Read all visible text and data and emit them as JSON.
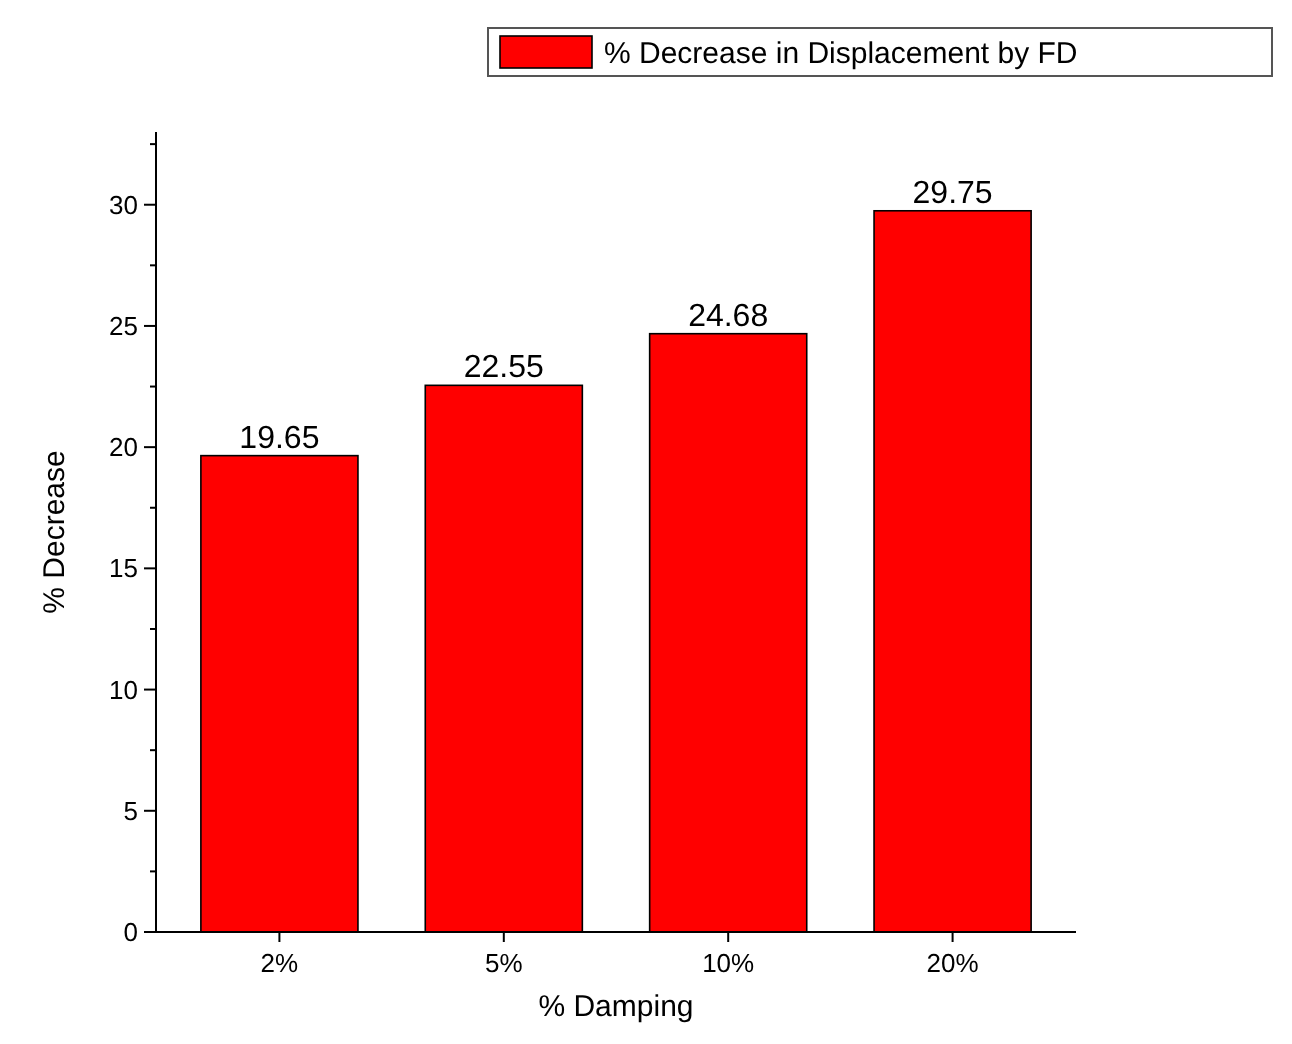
{
  "chart_data": {
    "type": "bar",
    "xlabel": "% Damping",
    "ylabel": "% Decrease",
    "categories": [
      "2%",
      "5%",
      "10%",
      "20%"
    ],
    "series": [
      {
        "name": "% Decrease in Displacement by FD",
        "color": "#ff0000",
        "values": [
          19.65,
          22.55,
          24.68,
          29.75
        ]
      }
    ],
    "data_labels": true,
    "ylim": [
      0,
      33
    ],
    "yticks": [
      0,
      {
        "value": 2.5,
        "label": null
      },
      5,
      {
        "value": 7.5,
        "label": null
      },
      10,
      {
        "value": 12.5,
        "label": null
      },
      15,
      {
        "value": 17.5,
        "label": null
      },
      20,
      {
        "value": 22.5,
        "label": null
      },
      25,
      {
        "value": 27.5,
        "label": null
      },
      30,
      {
        "value": 32.5,
        "label": null
      }
    ],
    "legend": "top right",
    "grid": false
  }
}
